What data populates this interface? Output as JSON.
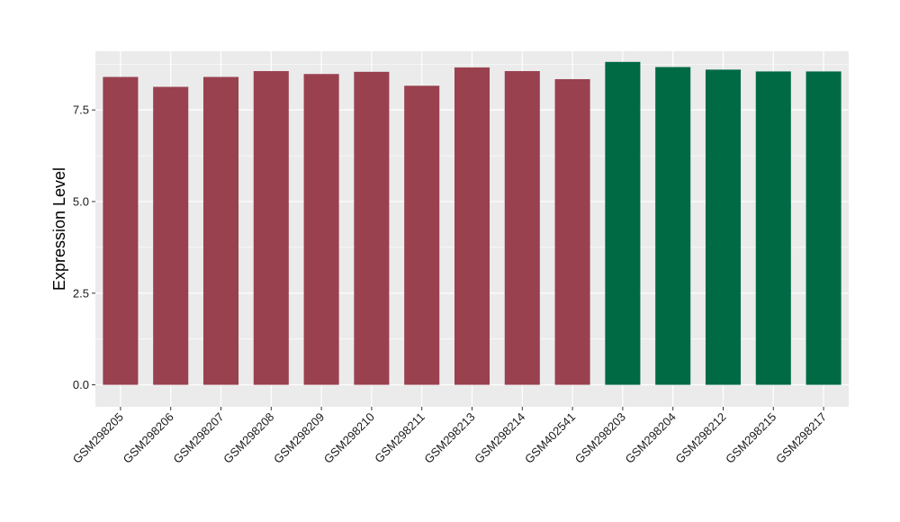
{
  "chart_data": {
    "type": "bar",
    "title": "",
    "xlabel": "",
    "ylabel": "Expression Level",
    "ylim": [
      -0.6,
      9.1
    ],
    "yticks": [
      0.0,
      2.5,
      5.0,
      7.5
    ],
    "ytick_labels": [
      "0.0",
      "2.5",
      "5.0",
      "7.5"
    ],
    "grid": true,
    "panel_background": "#ebebeb",
    "grid_color": "#ffffff",
    "categories": [
      "GSM298205",
      "GSM298206",
      "GSM298207",
      "GSM298208",
      "GSM298209",
      "GSM298210",
      "GSM298211",
      "GSM298213",
      "GSM298214",
      "GSM402541",
      "GSM298203",
      "GSM298204",
      "GSM298212",
      "GSM298215",
      "GSM298217"
    ],
    "values": [
      8.4,
      8.13,
      8.4,
      8.56,
      8.48,
      8.54,
      8.16,
      8.66,
      8.56,
      8.34,
      8.81,
      8.67,
      8.6,
      8.55,
      8.55
    ],
    "colors": [
      "#99414f",
      "#99414f",
      "#99414f",
      "#99414f",
      "#99414f",
      "#99414f",
      "#99414f",
      "#99414f",
      "#99414f",
      "#99414f",
      "#006a45",
      "#006a45",
      "#006a45",
      "#006a45",
      "#006a45"
    ]
  }
}
